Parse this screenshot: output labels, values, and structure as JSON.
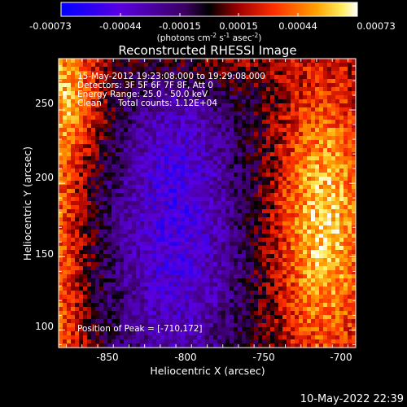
{
  "title": "Reconstructed RHESSI Image",
  "colorbar": {
    "min": -0.00073,
    "max": 0.00073,
    "tick_labels": [
      "-0.00073",
      "-0.00044",
      "-0.00015",
      "0.00015",
      "0.00044",
      "0.00073"
    ],
    "units": "(photons cm",
    "units_sup1": "-2",
    "units_mid": " s",
    "units_sup2": "-1",
    "units_mid2": " asec",
    "units_sup3": "-2",
    "units_end": ")"
  },
  "annotations": {
    "time": "15-May-2012 19:23:08.000 to 19:29:08.000",
    "detectors": "Detectors: 3F 5F 6F 7F 8F, Att 0",
    "energy": "Energy Range: 25.0 - 50.0 keV",
    "method": "Clean",
    "counts": "Total counts: 1.12E+04",
    "peak": "Position of Peak = [-710,172]"
  },
  "footer_date": "10-May-2022 22:39",
  "chart_data": {
    "type": "heatmap",
    "title": "Reconstructed RHESSI Image",
    "xlabel": "Heliocentric X (arcsec)",
    "ylabel": "Heliocentric Y (arcsec)",
    "xlim": [
      -880,
      -690
    ],
    "ylim": [
      88,
      285
    ],
    "x_ticks": [
      -850,
      -800,
      -750,
      -700
    ],
    "y_ticks": [
      100,
      150,
      200,
      250
    ],
    "x_tick_labels": [
      "-850",
      "-800",
      "-750",
      "-700"
    ],
    "y_tick_labels": [
      "100",
      "150",
      "200",
      "250"
    ],
    "peak_position": [
      -710,
      172
    ],
    "colormap": "blue-purple-black-red-yellow-white",
    "value_range": [
      -0.00073,
      0.00073
    ],
    "colors": {
      "background": "#000000",
      "low": "#0000ff",
      "mid": "#000000",
      "high": "#ffffff"
    }
  }
}
